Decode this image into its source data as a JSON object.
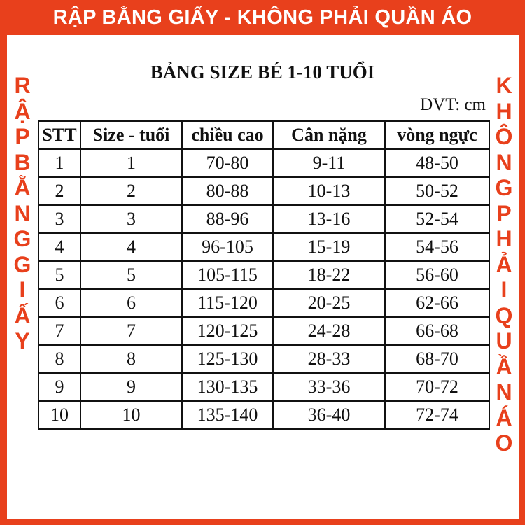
{
  "banner": "RẬP BẰNG GIẤY - KHÔNG PHẢI QUẦN ÁO",
  "watermark_left": [
    "R",
    "Ậ",
    "P",
    "B",
    "Ằ",
    "N",
    "G",
    "G",
    "I",
    "Ấ",
    "Y"
  ],
  "watermark_right": [
    "K",
    "H",
    "Ô",
    "N",
    "G",
    "P",
    "H",
    "Ả",
    "I",
    "Q",
    "U",
    "Ầ",
    "N",
    "Á",
    "O"
  ],
  "title": "BẢNG SIZE BÉ 1-10 TUỔI",
  "unit": "ĐVT: cm",
  "colors": {
    "accent": "#e8401c"
  },
  "table": {
    "headers": [
      "STT",
      "Size - tuổi",
      "chiều cao",
      "Cân nặng",
      "vòng ngực"
    ],
    "rows": [
      [
        "1",
        "1",
        "70-80",
        "9-11",
        "48-50"
      ],
      [
        "2",
        "2",
        "80-88",
        "10-13",
        "50-52"
      ],
      [
        "3",
        "3",
        "88-96",
        "13-16",
        "52-54"
      ],
      [
        "4",
        "4",
        "96-105",
        "15-19",
        "54-56"
      ],
      [
        "5",
        "5",
        "105-115",
        "18-22",
        "56-60"
      ],
      [
        "6",
        "6",
        "115-120",
        "20-25",
        "62-66"
      ],
      [
        "7",
        "7",
        "120-125",
        "24-28",
        "66-68"
      ],
      [
        "8",
        "8",
        "125-130",
        "28-33",
        "68-70"
      ],
      [
        "9",
        "9",
        "130-135",
        "33-36",
        "70-72"
      ],
      [
        "10",
        "10",
        "135-140",
        "36-40",
        "72-74"
      ]
    ]
  }
}
